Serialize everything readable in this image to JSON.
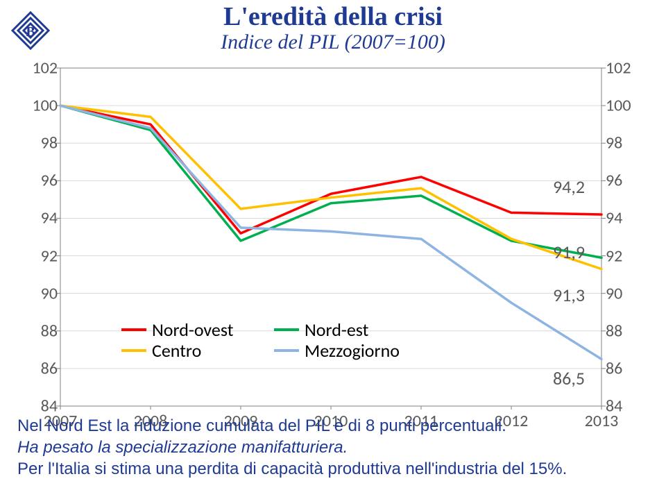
{
  "logo_name": "banca-italia-logo",
  "title_line1": "L'eredità della crisi",
  "title_line2": "Indice del PIL (2007=100)",
  "chart": {
    "type": "line",
    "x_categories": [
      "2007",
      "2008",
      "2009",
      "2010",
      "2011",
      "2012",
      "2013"
    ],
    "y_min": 84,
    "y_max": 102,
    "y_tick_step": 2,
    "plot_bg": "#ffffff",
    "grid_color": "#d9d9d9",
    "axis_color": "#808080",
    "tick_font_size": 24,
    "tick_font_color": "#595959",
    "line_width": 3.5,
    "series": [
      {
        "name": "Nord-ovest",
        "color": "#ff0000",
        "values": [
          100.0,
          99.0,
          93.2,
          95.3,
          96.2,
          94.3,
          94.2
        ],
        "end_label": "94,2",
        "end_label_dy": -40
      },
      {
        "name": "Nord-est",
        "color": "#00b050",
        "values": [
          100.0,
          98.7,
          92.8,
          94.8,
          95.2,
          92.8,
          91.9
        ],
        "end_label": "91,9",
        "end_label_dy": -8
      },
      {
        "name": "Centro",
        "color": "#ffc000",
        "values": [
          100.0,
          99.4,
          94.5,
          95.1,
          95.6,
          92.9,
          91.3
        ],
        "end_label": "91,3",
        "end_label_dy": 38
      },
      {
        "name": "Mezzogiorno",
        "color": "#8eb4e3",
        "values": [
          100.0,
          98.8,
          93.5,
          93.3,
          92.9,
          89.5,
          86.5
        ],
        "end_label": "86,5",
        "end_label_dy": 28
      }
    ],
    "legend_order": [
      0,
      1,
      2,
      3
    ]
  },
  "footer_p1": "Nel Nord Est la riduzione cumulata del PIL è di 8 punti percentuali.",
  "footer_p2": "Ha pesato la specializzazione manifatturiera.",
  "footer_p3": "Per l'Italia si stima una perdita di capacità produttiva nell'industria del 15%."
}
